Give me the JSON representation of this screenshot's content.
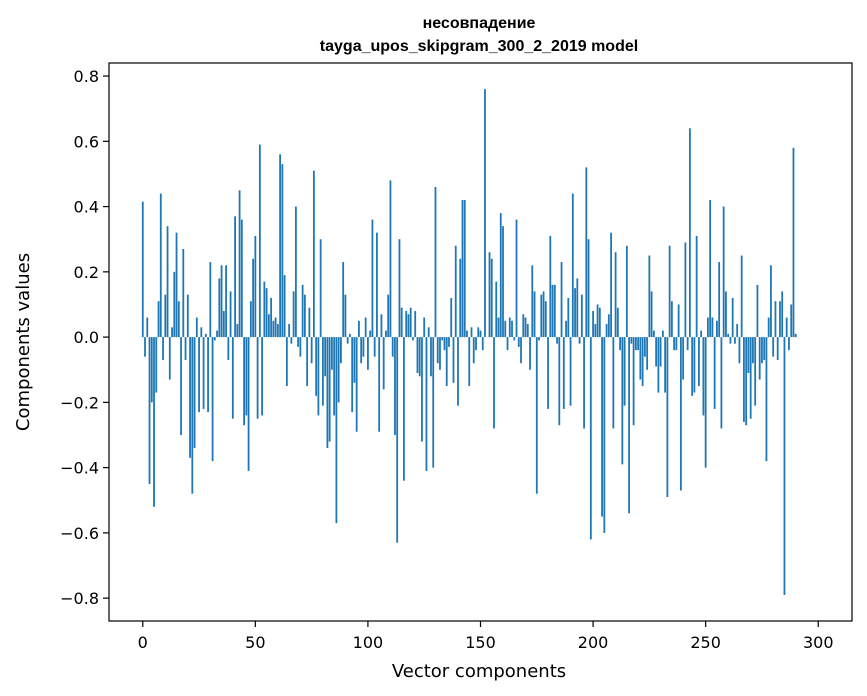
{
  "chart_data": {
    "type": "bar",
    "title_line1": "несовпадение",
    "title_line2": "tayga_upos_skipgram_300_2_2019 model",
    "xlabel": "Vector components",
    "ylabel": "Components values",
    "xlim": [
      -15,
      315
    ],
    "ylim": [
      -0.87,
      0.84
    ],
    "xticks": [
      0,
      50,
      100,
      150,
      200,
      250,
      300
    ],
    "xtick_labels": [
      "0",
      "50",
      "100",
      "150",
      "200",
      "250",
      "300"
    ],
    "yticks": [
      -0.8,
      -0.6,
      -0.4,
      -0.2,
      0.0,
      0.2,
      0.4,
      0.6,
      0.8
    ],
    "ytick_labels": [
      "−0.8",
      "−0.6",
      "−0.4",
      "−0.2",
      "0.0",
      "0.2",
      "0.4",
      "0.6",
      "0.8"
    ],
    "bar_color": "#1f77b4",
    "grid": false,
    "legend": "none",
    "values": [
      0.415,
      -0.06,
      0.06,
      -0.45,
      -0.2,
      -0.52,
      -0.17,
      0.11,
      0.44,
      -0.07,
      0.13,
      0.34,
      -0.13,
      0.03,
      0.2,
      0.32,
      0.11,
      -0.3,
      0.27,
      -0.07,
      0.13,
      -0.37,
      -0.48,
      -0.34,
      0.06,
      -0.23,
      0.03,
      -0.22,
      0.01,
      -0.23,
      0.23,
      -0.38,
      -0.01,
      0.02,
      0.18,
      0.22,
      0.08,
      0.22,
      -0.07,
      0.14,
      -0.25,
      0.37,
      0.04,
      0.45,
      0.36,
      -0.27,
      -0.24,
      -0.41,
      0.11,
      0.24,
      0.31,
      -0.25,
      0.59,
      -0.24,
      0.17,
      0.15,
      0.07,
      0.12,
      0.05,
      0.06,
      0.04,
      0.56,
      0.53,
      0.19,
      -0.15,
      0.04,
      -0.02,
      0.14,
      0.4,
      -0.03,
      -0.06,
      0.16,
      0.13,
      -0.15,
      0.09,
      -0.08,
      0.51,
      -0.18,
      -0.24,
      0.3,
      -0.21,
      -0.12,
      -0.34,
      -0.32,
      -0.1,
      -0.24,
      -0.57,
      -0.2,
      -0.08,
      0.23,
      0.13,
      -0.02,
      0.01,
      -0.23,
      -0.14,
      -0.29,
      0.05,
      -0.08,
      -0.06,
      0.06,
      -0.1,
      0.02,
      0.36,
      -0.06,
      0.32,
      -0.29,
      0.07,
      -0.16,
      0.02,
      0.13,
      0.48,
      -0.06,
      -0.3,
      -0.63,
      0.3,
      0.09,
      -0.44,
      0.08,
      0.07,
      0.09,
      -0.01,
      0.08,
      -0.11,
      -0.12,
      -0.32,
      0.06,
      -0.41,
      0.03,
      -0.12,
      -0.4,
      0.46,
      -0.08,
      -0.1,
      -0.01,
      -0.04,
      -0.15,
      -0.03,
      0.12,
      -0.14,
      0.28,
      -0.21,
      0.24,
      0.42,
      0.42,
      0.02,
      -0.15,
      0.03,
      -0.08,
      -0.04,
      0.03,
      0.02,
      -0.04,
      0.76,
      0.0,
      0.26,
      0.24,
      -0.28,
      0.17,
      0.06,
      0.38,
      0.34,
      0.05,
      -0.04,
      0.06,
      0.05,
      -0.01,
      0.36,
      -0.03,
      -0.08,
      0.07,
      0.06,
      0.04,
      -0.1,
      0.22,
      0.14,
      -0.48,
      -0.01,
      0.13,
      0.14,
      0.11,
      -0.22,
      0.31,
      0.16,
      0.16,
      -0.02,
      -0.27,
      0.23,
      -0.22,
      0.05,
      0.12,
      -0.21,
      0.44,
      0.15,
      0.18,
      -0.02,
      0.13,
      -0.28,
      0.52,
      0.3,
      -0.62,
      0.08,
      0.04,
      0.1,
      0.09,
      -0.55,
      -0.6,
      0.04,
      0.07,
      0.32,
      -0.28,
      0.26,
      0.09,
      -0.04,
      -0.39,
      -0.21,
      0.28,
      -0.54,
      -0.02,
      -0.27,
      -0.04,
      -0.04,
      -0.13,
      -0.15,
      -0.06,
      -0.1,
      0.25,
      0.14,
      0.02,
      -0.09,
      -0.17,
      -0.09,
      0.02,
      -0.17,
      -0.49,
      0.28,
      0.11,
      -0.04,
      -0.04,
      0.1,
      -0.47,
      -0.13,
      0.29,
      -0.04,
      0.64,
      -0.18,
      -0.17,
      0.31,
      -0.15,
      0.02,
      -0.24,
      -0.4,
      0.06,
      0.42,
      0.06,
      -0.22,
      0.05,
      0.23,
      -0.28,
      0.4,
      0.14,
      0.01,
      -0.02,
      0.12,
      -0.02,
      0.04,
      -0.08,
      0.25,
      -0.26,
      -0.27,
      -0.11,
      -0.25,
      -0.08,
      -0.21,
      0.16,
      -0.13,
      -0.08,
      -0.07,
      -0.38,
      0.06,
      0.22,
      -0.06,
      0.11,
      -0.07,
      0.11,
      0.14,
      -0.79,
      0.06,
      -0.04,
      0.1,
      0.58,
      0.01
    ]
  }
}
